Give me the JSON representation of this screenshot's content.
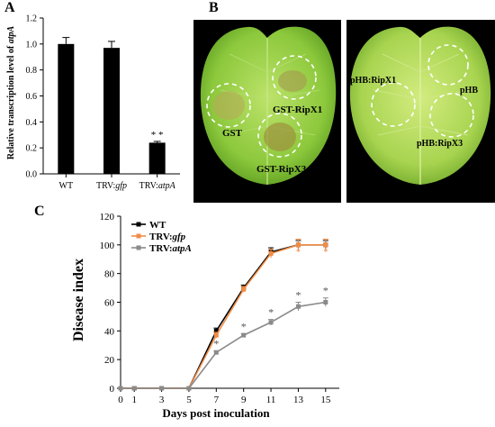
{
  "panels": {
    "a": "A",
    "b": "B",
    "c": "C"
  },
  "chart_data": [
    {
      "type": "bar",
      "panel": "A",
      "categories": [
        "WT",
        "TRV:gfp",
        "TRV:atpA"
      ],
      "category_labels": [
        {
          "plain": "WT",
          "italic": ""
        },
        {
          "plain": "TRV:",
          "italic": "gfp"
        },
        {
          "plain": "TRV:",
          "italic": "atpA"
        }
      ],
      "values": [
        1.0,
        0.97,
        0.24
      ],
      "errors": [
        0.05,
        0.05,
        0.01
      ],
      "annotations": [
        "",
        "",
        "* *"
      ],
      "ylabel_plain": "Relative transcription level of ",
      "ylabel_italic": "atpA",
      "yticks": [
        "0.0",
        "0.2",
        "0.4",
        "0.6",
        "0.8",
        "1.0",
        "1.2"
      ],
      "ylim": [
        0,
        1.2
      ],
      "color": "#000000"
    },
    {
      "type": "line",
      "panel": "C",
      "x": [
        0,
        1,
        3,
        5,
        7,
        9,
        11,
        13,
        15
      ],
      "xticks": [
        "0",
        "1",
        "3",
        "5",
        "7",
        "9",
        "11",
        "13",
        "15"
      ],
      "yticks": [
        "0",
        "20",
        "40",
        "60",
        "80",
        "100",
        "120"
      ],
      "xlim": [
        0,
        16
      ],
      "ylim": [
        0,
        120
      ],
      "xlabel": "Days post inoculation",
      "ylabel": "Disease index",
      "legend_position": "top-left",
      "series": [
        {
          "name": "WT",
          "name_plain": "WT",
          "name_italic": "",
          "color": "#000000",
          "marker": "square",
          "values": [
            0,
            0,
            0,
            0,
            40,
            70,
            95,
            100,
            100
          ],
          "errors": [
            0,
            0,
            0,
            0,
            2,
            2,
            3,
            3,
            3
          ]
        },
        {
          "name": "TRV:gfp",
          "name_plain": "TRV:",
          "name_italic": "gfp",
          "color": "#f08c46",
          "marker": "square",
          "values": [
            0,
            0,
            0,
            0,
            37,
            69,
            94,
            100,
            100
          ],
          "errors": [
            0,
            0,
            0,
            0,
            2,
            2,
            3,
            4,
            4
          ]
        },
        {
          "name": "TRV:atpA",
          "name_plain": "TRV:",
          "name_italic": "atpA",
          "color": "#8a8a8a",
          "marker": "square",
          "values": [
            0,
            0,
            0,
            0,
            25,
            37,
            46,
            57,
            60
          ],
          "errors": [
            0,
            0,
            0,
            0,
            1,
            1,
            2,
            3,
            3
          ]
        }
      ],
      "significance": [
        {
          "x": 7,
          "label": "*"
        },
        {
          "x": 9,
          "label": "*"
        },
        {
          "x": 11,
          "label": "*"
        },
        {
          "x": 13,
          "label": "*"
        },
        {
          "x": 15,
          "label": "*"
        }
      ],
      "upper_markers": [
        {
          "x": 13,
          "label": "*"
        },
        {
          "x": 15,
          "label": "*"
        }
      ]
    }
  ],
  "leaves": {
    "left": {
      "labels": [
        "GST",
        "GST-RipX1",
        "GST-RipX3"
      ],
      "leaf_color": "#9cd24a",
      "spot_colors": [
        "#b8a75a",
        "#a49a4c",
        "#9d8c3c"
      ]
    },
    "right": {
      "labels": [
        "pHB:RipX1",
        "pHB",
        "pHB:RipX3"
      ],
      "leaf_color": "#b3db5c"
    }
  }
}
